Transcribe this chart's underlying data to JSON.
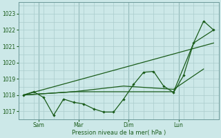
{
  "xlabel": "Pression niveau de la mer( hPa )",
  "bg_color": "#cce8e8",
  "grid_color": "#aacccc",
  "line_color": "#1a5c1a",
  "ylim": [
    1016.5,
    1023.7
  ],
  "xlim": [
    -0.5,
    19.5
  ],
  "xtick_positions": [
    1.5,
    5.5,
    10.5,
    15.5
  ],
  "xtick_labels": [
    "Sam",
    "Mar",
    "Dim",
    "Lun"
  ],
  "vline_positions": [
    1.5,
    5.5,
    10.5,
    15.5
  ],
  "ytick_positions": [
    1017,
    1018,
    1019,
    1020,
    1021,
    1022,
    1023
  ],
  "line1_x": [
    0,
    1,
    2,
    3,
    4,
    5,
    6,
    7,
    8,
    9,
    10,
    11,
    12,
    13,
    14,
    15,
    16,
    17,
    18,
    19
  ],
  "line1_y": [
    1018.0,
    1018.2,
    1017.85,
    1016.75,
    1017.75,
    1017.55,
    1017.45,
    1017.15,
    1016.95,
    1016.95,
    1017.75,
    1018.65,
    1019.4,
    1019.45,
    1018.55,
    1018.15,
    1019.2,
    1021.2,
    1022.55,
    1022.0
  ],
  "line2_x": [
    0,
    5,
    10,
    15,
    17,
    19
  ],
  "line2_y": [
    1018.0,
    1018.2,
    1018.2,
    1018.2,
    1021.2,
    1022.0
  ],
  "line3_x": [
    0,
    5,
    10,
    15,
    18
  ],
  "line3_y": [
    1018.0,
    1018.2,
    1018.55,
    1018.35,
    1019.6
  ],
  "line4_x": [
    0,
    19
  ],
  "line4_y": [
    1018.0,
    1021.2
  ]
}
